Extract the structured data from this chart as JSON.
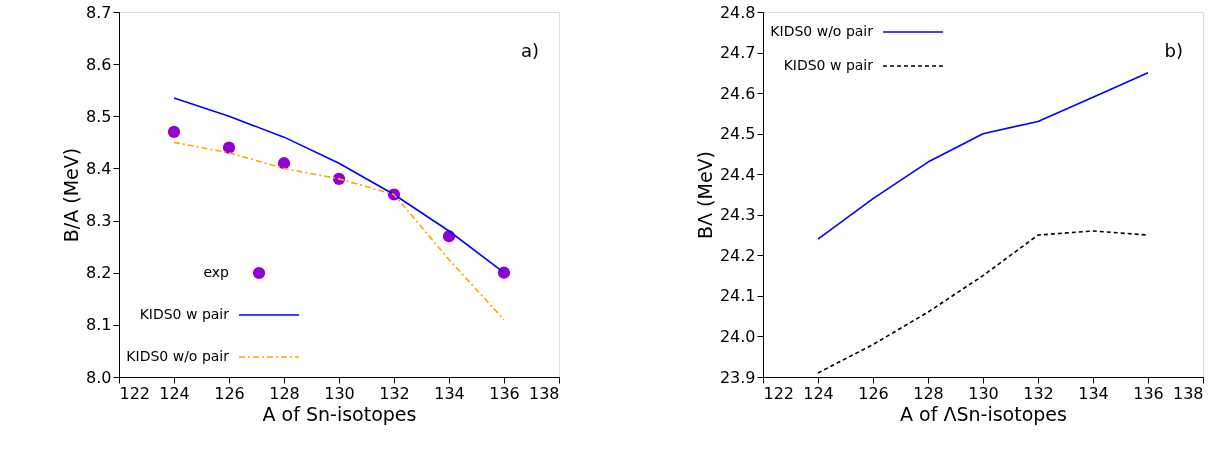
{
  "chart_data": [
    {
      "type": "line",
      "xlabel": "A of Sn-isotopes",
      "ylabel": "B/A (MeV)",
      "annotations": [
        "a)"
      ],
      "x": [
        124,
        126,
        128,
        130,
        132,
        134,
        136
      ],
      "series": [
        {
          "name": "exp",
          "type": "scatter",
          "marker": "circle",
          "color": "#9400d3",
          "values": [
            8.47,
            8.44,
            8.41,
            8.38,
            8.35,
            8.27,
            8.2
          ]
        },
        {
          "name": "KIDS0 w pair",
          "type": "line",
          "line_style": "solid",
          "color": "#0000ff",
          "values": [
            8.535,
            8.5,
            8.46,
            8.41,
            8.35,
            8.28,
            8.2
          ]
        },
        {
          "name": "KIDS0 w/o pair",
          "type": "line",
          "line_style": "dashdot",
          "color": "#ffa500",
          "values": [
            8.45,
            8.43,
            8.4,
            8.38,
            8.35,
            8.225,
            8.11
          ]
        }
      ],
      "xlim": [
        122,
        138
      ],
      "xticks": [
        122,
        124,
        126,
        128,
        130,
        132,
        134,
        136,
        138
      ],
      "ylim": [
        8.0,
        8.7
      ],
      "yticks": [
        {
          "value": 8.0,
          "label": "8.0"
        },
        8.1,
        8.2,
        8.3,
        8.4,
        8.5,
        8.6,
        8.7
      ],
      "grid": false,
      "legend": "bottom left"
    },
    {
      "type": "line",
      "xlabel": "A of ΛSn-isotopes",
      "ylabel": "BΛ (MeV)",
      "annotations": [
        "b)"
      ],
      "x": [
        124,
        126,
        128,
        130,
        132,
        134,
        136
      ],
      "series": [
        {
          "name": "KIDS0 w/o pair",
          "type": "line",
          "line_style": "solid",
          "color": "#0000ff",
          "values": [
            24.24,
            24.34,
            24.43,
            24.5,
            24.53,
            24.59,
            24.65
          ]
        },
        {
          "name": "KIDS0 w pair",
          "type": "line",
          "line_style": "dashed",
          "color": "#000000",
          "values": [
            23.91,
            23.98,
            24.06,
            24.15,
            24.25,
            24.26,
            24.25
          ]
        }
      ],
      "xlim": [
        122,
        138
      ],
      "xticks": [
        122,
        124,
        126,
        128,
        130,
        132,
        134,
        136,
        138
      ],
      "ylim": [
        23.9,
        24.8
      ],
      "yticks": [
        23.9,
        {
          "value": 24.0,
          "label": "24.0"
        },
        24.1,
        24.2,
        24.3,
        24.4,
        24.5,
        24.6,
        24.7,
        24.8
      ],
      "grid": false,
      "legend": "top left"
    }
  ]
}
